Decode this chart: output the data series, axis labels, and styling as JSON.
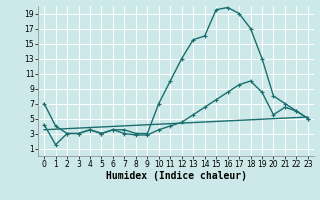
{
  "title": "",
  "xlabel": "Humidex (Indice chaleur)",
  "xlim": [
    -0.5,
    23.5
  ],
  "ylim": [
    0,
    20
  ],
  "xticks": [
    0,
    1,
    2,
    3,
    4,
    5,
    6,
    7,
    8,
    9,
    10,
    11,
    12,
    13,
    14,
    15,
    16,
    17,
    18,
    19,
    20,
    21,
    22,
    23
  ],
  "yticks": [
    1,
    3,
    5,
    7,
    9,
    11,
    13,
    15,
    17,
    19
  ],
  "background_color": "#cce8e8",
  "grid_color": "#ffffff",
  "line_color": "#1a6e6e",
  "line1_x": [
    0,
    1,
    2,
    3,
    4,
    5,
    6,
    7,
    8,
    9,
    10,
    11,
    12,
    13,
    14,
    15,
    16,
    17,
    18,
    19,
    20,
    21,
    22,
    23
  ],
  "line1_y": [
    7,
    4,
    3,
    3,
    3.5,
    3,
    3.5,
    3.5,
    3,
    3,
    7,
    10,
    13,
    15.5,
    16,
    19.5,
    19.8,
    19,
    17,
    13,
    8,
    7,
    6,
    5
  ],
  "line2_x": [
    0,
    1,
    2,
    3,
    4,
    5,
    6,
    7,
    8,
    9,
    10,
    11,
    12,
    13,
    14,
    15,
    16,
    17,
    18,
    19,
    20,
    21,
    22,
    23
  ],
  "line2_y": [
    4.2,
    1.5,
    3,
    3,
    3.5,
    3,
    3.5,
    3,
    2.8,
    2.8,
    3.5,
    4,
    4.5,
    5.5,
    6.5,
    7.5,
    8.5,
    9.5,
    10,
    8.5,
    5.5,
    6.5,
    6,
    5
  ],
  "line3_x": [
    0,
    23
  ],
  "line3_y": [
    3.5,
    5.2
  ],
  "marker": "+",
  "markersize": 3,
  "linewidth": 1.0,
  "fontsize_label": 7,
  "fontsize_tick": 5.5
}
